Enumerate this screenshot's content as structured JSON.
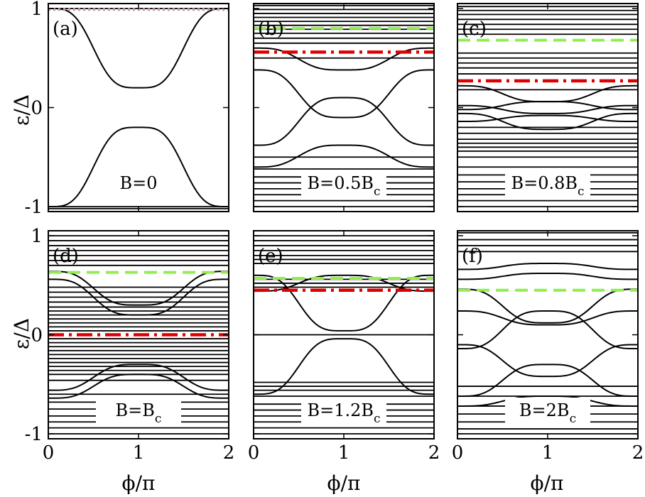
{
  "chart_data": {
    "type": "line",
    "grid": false,
    "x_axis": {
      "label_main": "ϕ/π",
      "range": [
        0,
        2
      ],
      "ticks": [
        "0",
        "1",
        "2"
      ]
    },
    "y_axis": {
      "label_main": "ε/Δ",
      "range": [
        -1.05,
        1.05
      ],
      "ticks": [
        "1",
        "0",
        "-1"
      ]
    },
    "colors": {
      "lines": "#000000",
      "green": "#90ee50",
      "red": "#dd0000",
      "pink": "#c0a0b0"
    },
    "panels": [
      {
        "tag": "(a)",
        "field_label": "B=0",
        "field_sub": "",
        "flat_levels": [
          1.0,
          -1.0,
          -1.02
        ],
        "band_pairs": [
          [
            1.0,
            0.2
          ],
          [
            -1.0,
            -0.2
          ]
        ],
        "green_dashed": null,
        "red_dashdot": null,
        "pink_dotted": 0.99
      },
      {
        "tag": "(b)",
        "field_label": "B=0.5B",
        "field_sub": "c",
        "flat_levels": [
          1.03,
          0.99,
          0.95,
          0.91,
          0.87,
          0.83,
          0.79,
          0.75,
          0.7,
          0.65,
          0.5,
          -0.5,
          -0.62,
          -0.7,
          -0.76,
          -0.82,
          -0.88,
          -0.94,
          -1.0
        ],
        "band_pairs": [
          [
            0.6,
            0.38
          ],
          [
            -0.6,
            -0.38
          ],
          [
            -0.38,
            0.1
          ],
          [
            0.38,
            -0.1
          ]
        ],
        "green_dashed": 0.8,
        "red_dashdot": 0.56,
        "pink_dotted": null
      },
      {
        "tag": "(c)",
        "field_label": "B=0.8B",
        "field_sub": "c",
        "flat_levels": [
          1.02,
          0.98,
          0.94,
          0.89,
          0.84,
          0.79,
          0.74,
          0.55,
          0.5,
          0.45,
          0.4,
          0.34,
          0.18,
          -0.2,
          -0.26,
          -0.32,
          -0.36,
          -0.4,
          -0.44,
          -0.5,
          -0.6,
          -0.68,
          -0.75,
          -0.82,
          -0.88,
          -0.94,
          -1.0
        ],
        "band_pairs": [
          [
            0.22,
            0.06
          ],
          [
            -0.06,
            -0.22
          ],
          [
            -0.02,
            0.06
          ],
          [
            0.02,
            -0.06
          ],
          [
            -0.14,
            -0.08
          ]
        ],
        "green_dashed": 0.68,
        "red_dashdot": 0.27,
        "pink_dotted": null
      },
      {
        "tag": "(d)",
        "field_label": "B=B",
        "field_sub": "c",
        "flat_levels": [
          1.0,
          0.95,
          0.9,
          0.85,
          0.8,
          0.75,
          0.7,
          0.48,
          0.43,
          0.38,
          0.33,
          0.28,
          0.24,
          0.2,
          0.16,
          0.12,
          0.08,
          0.04,
          -0.04,
          -0.08,
          -0.12,
          -0.16,
          -0.2,
          -0.24,
          -0.28,
          -0.32,
          -0.36,
          -0.4,
          -0.46,
          -0.6,
          -0.68,
          -0.75,
          -0.82,
          -0.88,
          -0.94,
          -1.0
        ],
        "band_pairs": [
          [
            0.64,
            0.3
          ],
          [
            0.56,
            0.2
          ],
          [
            -0.56,
            -0.3
          ],
          [
            -0.64,
            -0.4
          ]
        ],
        "green_dashed": 0.63,
        "red_dashdot": 0.0,
        "pink_dotted": null
      },
      {
        "tag": "(e)",
        "field_label": "B=1.2B",
        "field_sub": "c",
        "flat_levels": [
          1.0,
          0.95,
          0.9,
          0.85,
          0.8,
          0.76,
          0.72,
          0.56,
          0.52,
          0.48,
          0.0,
          -0.48,
          -0.52,
          -0.56,
          -0.62,
          -0.7,
          -0.76,
          -0.82,
          -0.88,
          -0.94,
          -1.0
        ],
        "band_pairs": [
          [
            0.6,
            0.04
          ],
          [
            -0.6,
            -0.04
          ],
          [
            0.44,
            0.6
          ]
        ],
        "green_dashed": 0.57,
        "red_dashdot": 0.45,
        "pink_dotted": null
      },
      {
        "tag": "(f)",
        "field_label": "B=2B",
        "field_sub": "c",
        "flat_levels": [
          1.03,
          0.96,
          0.9,
          0.84,
          -0.52,
          -0.62,
          -0.72,
          -0.8,
          -0.88,
          -0.95,
          -1.0
        ],
        "band_pairs": [
          [
            0.56,
            0.62
          ],
          [
            0.46,
            0.12
          ],
          [
            0.24,
            0.1
          ],
          [
            -0.1,
            -0.42
          ],
          [
            -0.14,
            0.24
          ],
          [
            0.66,
            0.72
          ],
          [
            -0.62,
            -0.3
          ],
          [
            -0.72,
            -0.62
          ]
        ],
        "green_dashed": 0.45,
        "red_dashdot": null,
        "pink_dotted": null
      }
    ]
  }
}
